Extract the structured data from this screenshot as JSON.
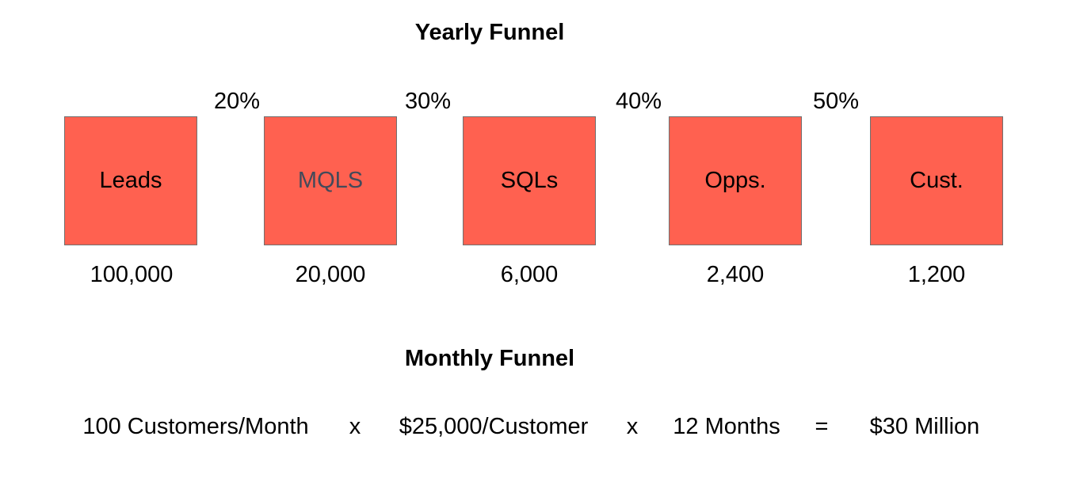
{
  "colors": {
    "box_fill": "#ff6150",
    "box_border": "#707070",
    "text": "#000000",
    "mqls_text": "#434a5a"
  },
  "yearly_funnel": {
    "title": "Yearly Funnel",
    "stages": [
      {
        "label": "Leads",
        "count": "100,000"
      },
      {
        "label": "MQLS",
        "count": "20,000"
      },
      {
        "label": "SQLs",
        "count": "6,000"
      },
      {
        "label": "Opps.",
        "count": "2,400"
      },
      {
        "label": "Cust.",
        "count": "1,200"
      }
    ],
    "conversion_rates": [
      "20%",
      "30%",
      "40%",
      "50%"
    ]
  },
  "monthly_funnel": {
    "title": "Monthly Funnel",
    "equation": {
      "customers": "100 Customers/Month",
      "op1": "x",
      "value": "$25,000/Customer",
      "op2": "x",
      "months": "12 Months",
      "equals": "=",
      "result": "$30 Million"
    }
  }
}
